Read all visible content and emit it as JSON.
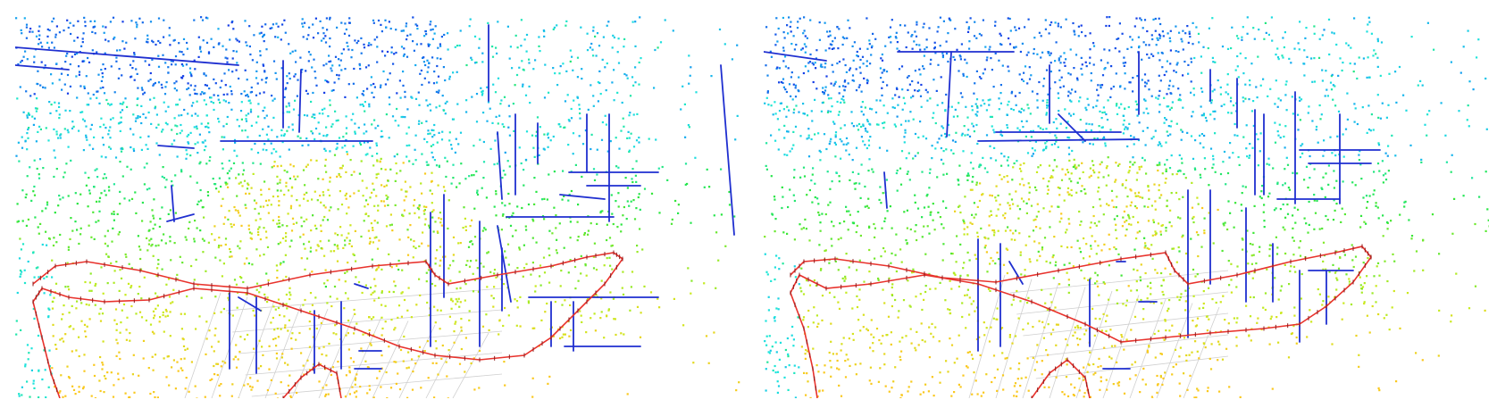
{
  "panels": [
    {
      "id": "left",
      "seed": 7,
      "blue_lines": [
        [
          0,
          35,
          250,
          55
        ],
        [
          0,
          55,
          60,
          60
        ],
        [
          300,
          50,
          300,
          125
        ],
        [
          320,
          60,
          318,
          130
        ],
        [
          230,
          140,
          400,
          140
        ],
        [
          160,
          145,
          200,
          148
        ],
        [
          175,
          190,
          178,
          230
        ],
        [
          170,
          230,
          200,
          222
        ],
        [
          530,
          10,
          530,
          95
        ],
        [
          560,
          110,
          560,
          200
        ],
        [
          540,
          130,
          545,
          205
        ],
        [
          585,
          120,
          585,
          165
        ],
        [
          620,
          175,
          720,
          175
        ],
        [
          640,
          190,
          700,
          190
        ],
        [
          550,
          225,
          670,
          225
        ],
        [
          610,
          200,
          660,
          205
        ],
        [
          665,
          110,
          665,
          230
        ],
        [
          640,
          110,
          640,
          175
        ],
        [
          480,
          200,
          480,
          315
        ],
        [
          520,
          230,
          520,
          370
        ],
        [
          545,
          260,
          545,
          330
        ],
        [
          575,
          315,
          720,
          315
        ],
        [
          600,
          320,
          600,
          370
        ],
        [
          625,
          320,
          625,
          375
        ],
        [
          615,
          370,
          700,
          370
        ],
        [
          240,
          310,
          240,
          395
        ],
        [
          270,
          315,
          270,
          400
        ],
        [
          335,
          330,
          335,
          400
        ],
        [
          365,
          320,
          365,
          395
        ],
        [
          380,
          395,
          410,
          395
        ],
        [
          385,
          375,
          410,
          375
        ],
        [
          465,
          220,
          465,
          370
        ],
        [
          790,
          55,
          805,
          245
        ],
        [
          250,
          315,
          275,
          330
        ],
        [
          380,
          300,
          395,
          305
        ],
        [
          540,
          235,
          555,
          320
        ]
      ],
      "trajectory_main": [
        [
          20,
          300
        ],
        [
          45,
          280
        ],
        [
          80,
          275
        ],
        [
          140,
          285
        ],
        [
          200,
          300
        ],
        [
          260,
          305
        ],
        [
          330,
          290
        ],
        [
          400,
          280
        ],
        [
          460,
          275
        ],
        [
          470,
          290
        ],
        [
          485,
          300
        ],
        [
          540,
          290
        ],
        [
          600,
          280
        ],
        [
          640,
          270
        ],
        [
          670,
          265
        ],
        [
          680,
          272
        ],
        [
          660,
          300
        ],
        [
          630,
          330
        ],
        [
          600,
          360
        ],
        [
          570,
          380
        ],
        [
          520,
          385
        ],
        [
          470,
          380
        ],
        [
          430,
          370
        ],
        [
          380,
          350
        ],
        [
          320,
          330
        ],
        [
          260,
          310
        ],
        [
          200,
          305
        ],
        [
          150,
          318
        ],
        [
          100,
          320
        ],
        [
          60,
          315
        ],
        [
          30,
          305
        ],
        [
          20,
          320
        ],
        [
          30,
          360
        ],
        [
          40,
          400
        ],
        [
          50,
          428
        ]
      ],
      "trajectory_branch": [
        [
          300,
          428
        ],
        [
          320,
          405
        ],
        [
          340,
          390
        ],
        [
          360,
          400
        ],
        [
          365,
          428
        ]
      ],
      "grid": {
        "x0": 230,
        "y0": 310,
        "x1": 545,
        "y1": 428
      }
    },
    {
      "id": "right",
      "seed": 23,
      "blue_lines": [
        [
          150,
          40,
          280,
          40
        ],
        [
          0,
          40,
          70,
          50
        ],
        [
          210,
          40,
          205,
          135
        ],
        [
          320,
          55,
          320,
          120
        ],
        [
          260,
          130,
          400,
          130
        ],
        [
          240,
          140,
          420,
          138
        ],
        [
          135,
          175,
          138,
          215
        ],
        [
          420,
          40,
          420,
          110
        ],
        [
          500,
          60,
          500,
          95
        ],
        [
          530,
          70,
          530,
          125
        ],
        [
          550,
          105,
          550,
          200
        ],
        [
          560,
          110,
          560,
          200
        ],
        [
          595,
          85,
          595,
          210
        ],
        [
          645,
          110,
          645,
          210
        ],
        [
          600,
          150,
          690,
          150
        ],
        [
          610,
          165,
          680,
          165
        ],
        [
          575,
          205,
          645,
          205
        ],
        [
          540,
          215,
          540,
          320
        ],
        [
          570,
          255,
          570,
          320
        ],
        [
          600,
          285,
          600,
          365
        ],
        [
          610,
          285,
          660,
          285
        ],
        [
          630,
          285,
          630,
          345
        ],
        [
          475,
          195,
          475,
          360
        ],
        [
          500,
          195,
          500,
          300
        ],
        [
          420,
          320,
          440,
          320
        ],
        [
          395,
          275,
          405,
          275
        ],
        [
          365,
          295,
          365,
          370
        ],
        [
          240,
          250,
          240,
          375
        ],
        [
          265,
          255,
          265,
          370
        ],
        [
          275,
          275,
          290,
          300
        ],
        [
          380,
          395,
          410,
          395
        ],
        [
          330,
          110,
          360,
          140
        ]
      ],
      "trajectory_main": [
        [
          30,
          290
        ],
        [
          45,
          275
        ],
        [
          80,
          272
        ],
        [
          140,
          280
        ],
        [
          200,
          293
        ],
        [
          260,
          298
        ],
        [
          330,
          285
        ],
        [
          400,
          272
        ],
        [
          450,
          265
        ],
        [
          460,
          285
        ],
        [
          475,
          300
        ],
        [
          530,
          290
        ],
        [
          590,
          275
        ],
        [
          640,
          265
        ],
        [
          670,
          258
        ],
        [
          680,
          270
        ],
        [
          660,
          298
        ],
        [
          630,
          325
        ],
        [
          600,
          345
        ],
        [
          560,
          350
        ],
        [
          500,
          355
        ],
        [
          450,
          360
        ],
        [
          400,
          365
        ],
        [
          360,
          345
        ],
        [
          300,
          320
        ],
        [
          240,
          300
        ],
        [
          180,
          290
        ],
        [
          120,
          300
        ],
        [
          70,
          305
        ],
        [
          40,
          290
        ],
        [
          30,
          310
        ],
        [
          45,
          350
        ],
        [
          55,
          395
        ],
        [
          60,
          428
        ]
      ],
      "trajectory_branch": [
        [
          300,
          428
        ],
        [
          320,
          400
        ],
        [
          340,
          385
        ],
        [
          360,
          405
        ],
        [
          365,
          428
        ]
      ],
      "grid": {
        "x0": 270,
        "y0": 290,
        "x1": 520,
        "y1": 428
      }
    }
  ],
  "colors": {
    "trajectory": "#e8322c",
    "trajectory_marker": "#8b1a1a",
    "line_segment": "#1f2fd0",
    "grid": "#cfcfcf",
    "background": "#ffffff"
  }
}
